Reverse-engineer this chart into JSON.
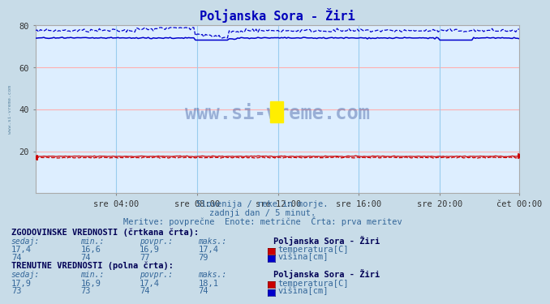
{
  "title": "Poljanska Sora - Žiri",
  "bg_color": "#c8dce8",
  "plot_bg_color": "#ddeeff",
  "grid_h_color": "#ffb0b0",
  "grid_v_color": "#99ccee",
  "ylim": [
    0,
    80
  ],
  "yticks": [
    20,
    40,
    60,
    80
  ],
  "n_points": 288,
  "temp_color": "#cc0000",
  "height_color": "#0000cc",
  "xtick_labels": [
    "sre 04:00",
    "sre 08:00",
    "sre 12:00",
    "sre 16:00",
    "sre 20:00",
    "čet 00:00"
  ],
  "subtitle1": "Slovenija / reke in morje.",
  "subtitle2": "zadnji dan / 5 minut.",
  "subtitle3": "Meritve: povprečne  Enote: metrične  Črta: prva meritev",
  "table_hist_label": "ZGODOVINSKE VREDNOSTI (črtkana črta):",
  "table_curr_label": "TRENUTNE VREDNOSTI (polna črta):",
  "col_headers": [
    "sedaj:",
    "min.:",
    "povpr.:",
    "maks.:"
  ],
  "hist_temp_row": [
    "17,4",
    "16,6",
    "16,9",
    "17,4"
  ],
  "hist_height_row": [
    "74",
    "74",
    "77",
    "79"
  ],
  "curr_temp_row": [
    "17,9",
    "16,9",
    "17,4",
    "18,1"
  ],
  "curr_height_row": [
    "73",
    "73",
    "74",
    "74"
  ],
  "legend_station": "Poljanska Sora - Žiri",
  "legend_temp": "temperatura[C]",
  "legend_height": "višina[cm]",
  "watermark": "www.si-vreme.com"
}
